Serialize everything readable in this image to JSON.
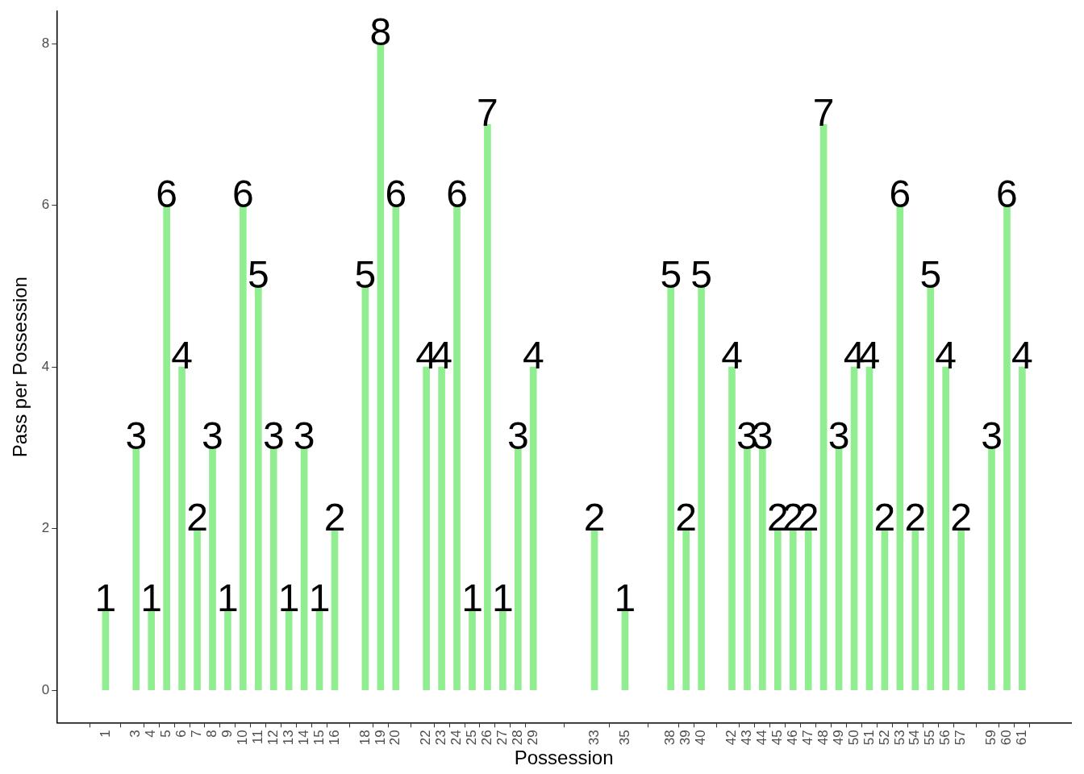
{
  "chart_data": {
    "type": "bar",
    "xlabel": "Possession",
    "ylabel": "Pass per Possession",
    "x": [
      1,
      3,
      4,
      5,
      6,
      7,
      8,
      9,
      10,
      11,
      12,
      13,
      14,
      15,
      16,
      18,
      19,
      20,
      22,
      23,
      24,
      25,
      26,
      27,
      28,
      29,
      33,
      35,
      38,
      39,
      40,
      42,
      43,
      44,
      45,
      46,
      47,
      48,
      49,
      50,
      51,
      52,
      53,
      54,
      55,
      56,
      57,
      59,
      60,
      61
    ],
    "values": [
      1,
      3,
      1,
      6,
      4,
      2,
      3,
      1,
      6,
      5,
      3,
      1,
      3,
      1,
      2,
      5,
      8,
      6,
      4,
      4,
      6,
      1,
      7,
      1,
      3,
      4,
      2,
      1,
      5,
      2,
      5,
      4,
      3,
      3,
      2,
      2,
      2,
      7,
      3,
      4,
      4,
      2,
      6,
      2,
      5,
      4,
      2,
      3,
      6,
      4
    ],
    "color": "#90ee90",
    "xlim": [
      -2.2,
      64.2
    ],
    "xticks": [
      1,
      3,
      4,
      5,
      6,
      7,
      8,
      9,
      10,
      11,
      12,
      13,
      14,
      15,
      16,
      18,
      19,
      20,
      22,
      23,
      24,
      25,
      26,
      27,
      28,
      29,
      33,
      35,
      38,
      39,
      40,
      42,
      43,
      44,
      45,
      46,
      47,
      48,
      49,
      50,
      51,
      52,
      53,
      54,
      55,
      56,
      57,
      59,
      60,
      61
    ],
    "ylim": [
      -0.4,
      8.4
    ],
    "yticks": [
      0,
      2,
      4,
      6,
      8
    ],
    "data_labels": true
  }
}
